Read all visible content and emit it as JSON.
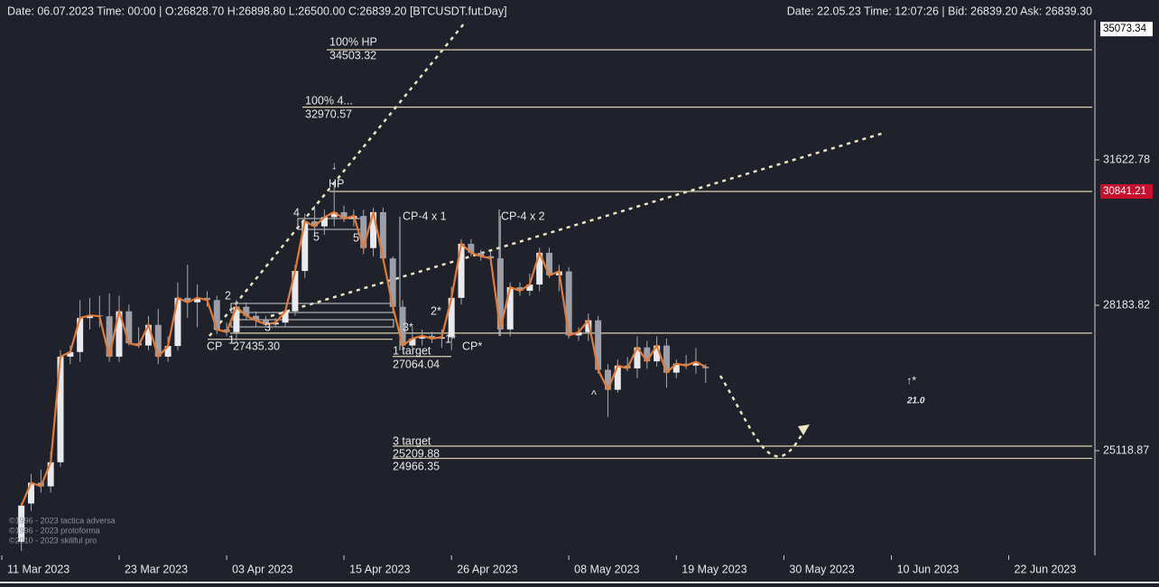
{
  "header": {
    "left": "Date: 06.07.2023 Time: 00:00 | O:26828.70 H:26898.80 L:26500.00 C:26839.20 [BTCUSDT.fut:Day]",
    "right": "Date: 22.05.23 Time: 12:07:26 | Bid: 26839.20 Ask: 26839.30"
  },
  "chart_data": {
    "type": "candlestick",
    "log_scale": true,
    "up_color": "#e9e9ee",
    "down_color": "#9c9ea8",
    "line_color": "#e07b3a",
    "level_color": "#d9d2b0",
    "highlight_color": "#c8102e",
    "x": [
      "2023-03-13",
      "2023-03-14",
      "2023-03-15",
      "2023-03-16",
      "2023-03-17",
      "2023-03-18",
      "2023-03-19",
      "2023-03-20",
      "2023-03-21",
      "2023-03-22",
      "2023-03-23",
      "2023-03-24",
      "2023-03-25",
      "2023-03-26",
      "2023-03-27",
      "2023-03-28",
      "2023-03-29",
      "2023-03-30",
      "2023-03-31",
      "2023-04-01",
      "2023-04-02",
      "2023-04-03",
      "2023-04-04",
      "2023-04-05",
      "2023-04-06",
      "2023-04-07",
      "2023-04-08",
      "2023-04-09",
      "2023-04-10",
      "2023-04-11",
      "2023-04-12",
      "2023-04-13",
      "2023-04-14",
      "2023-04-15",
      "2023-04-16",
      "2023-04-17",
      "2023-04-18",
      "2023-04-19",
      "2023-04-20",
      "2023-04-21",
      "2023-04-22",
      "2023-04-23",
      "2023-04-24",
      "2023-04-25",
      "2023-04-26",
      "2023-04-27",
      "2023-04-28",
      "2023-04-29",
      "2023-04-30",
      "2023-05-01",
      "2023-05-02",
      "2023-05-03",
      "2023-05-04",
      "2023-05-05",
      "2023-05-06",
      "2023-05-07",
      "2023-05-08",
      "2023-05-09",
      "2023-05-10",
      "2023-05-11",
      "2023-05-12",
      "2023-05-13",
      "2023-05-14",
      "2023-05-15",
      "2023-05-16",
      "2023-05-17",
      "2023-05-18",
      "2023-05-19",
      "2023-05-20",
      "2023-05-21",
      "2023-05-22"
    ],
    "open": [
      23370,
      24090,
      24490,
      24420,
      24890,
      27060,
      27160,
      27900,
      27960,
      27940,
      27060,
      28050,
      27350,
      27300,
      27750,
      27060,
      27290,
      28350,
      28250,
      28350,
      28300,
      27650,
      27590,
      28150,
      27950,
      27850,
      27760,
      27800,
      28050,
      28960,
      30120,
      30000,
      30220,
      30340,
      30180,
      30250,
      29490,
      30340,
      29250,
      28150,
      27300,
      27450,
      27510,
      27450,
      27480,
      28350,
      29590,
      29380,
      29300,
      29250,
      27650,
      28590,
      28510,
      28650,
      29380,
      28860,
      28950,
      27520,
      27590,
      27850,
      26780,
      26360,
      26870,
      26810,
      27260,
      26960,
      27300,
      26720,
      26910,
      26870,
      26828.7
    ],
    "high": [
      24100,
      24660,
      24750,
      25100,
      27200,
      27300,
      28300,
      28350,
      28400,
      28450,
      28400,
      28200,
      27700,
      27950,
      28100,
      27500,
      28700,
      29100,
      28650,
      28500,
      28400,
      27800,
      28300,
      28250,
      28050,
      27950,
      27900,
      28100,
      29100,
      30300,
      30500,
      30400,
      31100,
      30500,
      30400,
      30400,
      30450,
      30450,
      29300,
      28300,
      27700,
      27650,
      27600,
      27650,
      28600,
      29700,
      29700,
      29450,
      29400,
      30250,
      28700,
      28700,
      28900,
      29500,
      29500,
      29100,
      29050,
      27700,
      28000,
      27950,
      26900,
      27000,
      27050,
      27500,
      27400,
      27500,
      27450,
      27000,
      27100,
      27250,
      26898.8
    ],
    "low": [
      23200,
      23950,
      24300,
      24300,
      24800,
      26900,
      26950,
      27650,
      27700,
      26950,
      26950,
      27300,
      27250,
      27200,
      26900,
      26950,
      27200,
      27900,
      27700,
      28150,
      27550,
      27500,
      27400,
      27850,
      27700,
      27700,
      27700,
      27700,
      27950,
      28800,
      29800,
      29800,
      30000,
      30100,
      30000,
      29350,
      29300,
      29200,
      28000,
      27200,
      27150,
      27300,
      27350,
      27250,
      27200,
      28200,
      29300,
      29200,
      29100,
      27500,
      27500,
      28400,
      28400,
      28500,
      28800,
      28500,
      27450,
      27400,
      27400,
      26700,
      25800,
      26300,
      26750,
      26600,
      26800,
      26850,
      26400,
      26600,
      26800,
      26700,
      26500
    ],
    "close": [
      24050,
      24490,
      24420,
      24890,
      27060,
      27160,
      27900,
      27960,
      27940,
      27060,
      28050,
      27350,
      27300,
      27750,
      27060,
      27290,
      28350,
      28250,
      28350,
      28300,
      27650,
      27590,
      28150,
      27950,
      27850,
      27760,
      27800,
      28050,
      28960,
      30120,
      30000,
      30220,
      30340,
      30180,
      30250,
      29490,
      30340,
      29250,
      28150,
      27300,
      27450,
      27510,
      27450,
      27480,
      28350,
      29590,
      29380,
      29300,
      29250,
      27650,
      28590,
      28510,
      28650,
      29380,
      28860,
      28950,
      27520,
      27590,
      27850,
      26780,
      26360,
      26870,
      26810,
      27260,
      26960,
      27300,
      26720,
      26910,
      26870,
      26950,
      26839.2
    ],
    "xlim": [
      "2023-03-11",
      "2023-07-01"
    ],
    "xticks": [
      {
        "value": "2023-03-11",
        "label": "11 Mar 2023"
      },
      {
        "value": "2023-03-23",
        "label": "23 Mar 2023"
      },
      {
        "value": "2023-04-03",
        "label": "03 Apr 2023"
      },
      {
        "value": "2023-04-15",
        "label": "15 Apr 2023"
      },
      {
        "value": "2023-04-26",
        "label": "26 Apr 2023"
      },
      {
        "value": "2023-05-08",
        "label": "08 May 2023"
      },
      {
        "value": "2023-05-19",
        "label": "19 May 2023"
      },
      {
        "value": "2023-05-30",
        "label": "30 May 2023"
      },
      {
        "value": "2023-06-10",
        "label": "10 Jun 2023"
      },
      {
        "value": "2023-06-22",
        "label": "22 Jun 2023"
      }
    ],
    "ylim": [
      23170,
      35330
    ],
    "yticks": [
      31622.78,
      28183.82,
      25118.87
    ],
    "max_marker": 35073.34,
    "levels": [
      {
        "value": 34503.32,
        "label": "100% HP"
      },
      {
        "value": 32970.57,
        "label": "100%  4..."
      },
      {
        "value": 30841.21,
        "highlight": true
      },
      {
        "value": 27570
      },
      {
        "value": 27435.3,
        "value_label": "27435.30",
        "label": "CP"
      },
      {
        "value": 27064.04,
        "label": "1 target"
      },
      {
        "value": 25209.88,
        "label": "3 target"
      },
      {
        "value": 24966.35
      }
    ],
    "annotations": [
      "CP-4 x 1",
      "CP-4 x 2",
      "↓",
      "HP",
      "4",
      "5",
      "5",
      "2",
      "3",
      "1",
      "3*",
      "2*",
      "1*",
      "CP*",
      "^",
      "↑*",
      "21.0"
    ],
    "copyright": [
      "©1996 - 2023 tactica adversa",
      "©1996 - 2023 protoforma",
      "©2010 - 2023 skillful pro"
    ]
  }
}
